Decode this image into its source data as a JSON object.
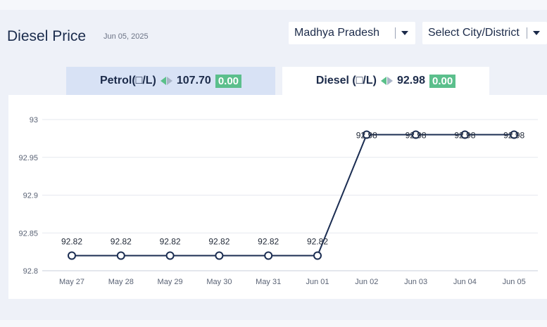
{
  "header": {
    "title": "Diesel Price",
    "date": "Jun 05, 2025"
  },
  "filters": {
    "state": "Madhya Pradesh",
    "city": "Select City/District"
  },
  "tabs": [
    {
      "label": "Petrol(□/L)",
      "price": "107.70",
      "change": "0.00"
    },
    {
      "label": "Diesel (□/L)",
      "price": "92.98",
      "change": "0.00"
    }
  ],
  "colors": {
    "line": "#1b2d52",
    "badge": "#5bbf8c",
    "active_tab": "#ffffff",
    "inactive_tab": "#d8e2f5"
  },
  "chart_data": {
    "type": "line",
    "categories": [
      "May 27",
      "May 28",
      "May 29",
      "May 30",
      "May 31",
      "Jun 01",
      "Jun 02",
      "Jun 03",
      "Jun 04",
      "Jun 05"
    ],
    "series": [
      {
        "values": [
          92.82,
          92.82,
          92.82,
          92.82,
          92.82,
          92.82,
          92.98,
          92.98,
          92.98,
          92.98
        ]
      }
    ],
    "data_labels": [
      "92.82",
      "92.82",
      "92.82",
      "92.82",
      "92.82",
      "92.82",
      "92.98",
      "92.98",
      "92.98",
      "92.98"
    ],
    "ylim": [
      92.8,
      93
    ],
    "yticks": [
      "92.8",
      "92.85",
      "92.9",
      "92.95",
      "93"
    ],
    "grid": true
  }
}
